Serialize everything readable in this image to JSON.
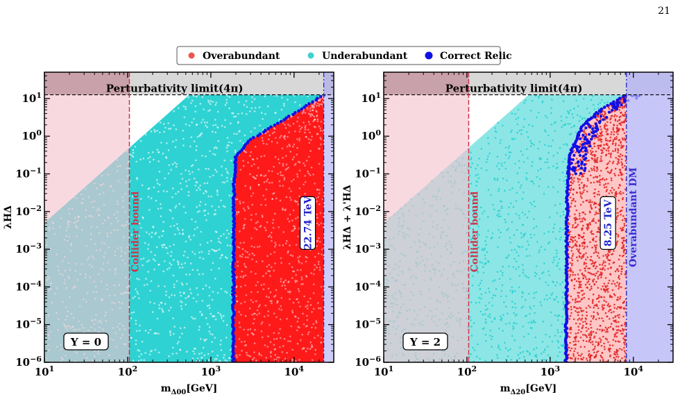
{
  "page_number": "21",
  "legend": {
    "items": [
      {
        "label": "Overabundant",
        "color": "#ef5350"
      },
      {
        "label": "Underabundant",
        "color": "#40d0d0"
      },
      {
        "label": "Correct Relic",
        "color": "#1010e6"
      }
    ]
  },
  "colors": {
    "overabundant": "#ff1a1a",
    "underabundant": "#2fd2d2",
    "correct_relic": "#1010e6",
    "pink_region": "#f5c2cd",
    "teal_overlap": "#3aa0a8",
    "perturbativity_band": "#d8d8d8",
    "overabundant_band_blue": "#b3b3f7",
    "collider_line": "#d0334a",
    "perturbativity_line": "#000000",
    "relic_limit_line": "#2020cc"
  },
  "chart_data": [
    {
      "type": "scatter",
      "xlabel": "m_{Δ_0^0} [GeV]",
      "ylabel": "λ_{HΔ}",
      "x_scale": "log",
      "y_scale": "log",
      "xlim": [
        10,
        30000
      ],
      "ylim": [
        1e-06,
        50
      ],
      "x_ticks": [
        "10^1",
        "10^2",
        "10^3",
        "10^4"
      ],
      "y_ticks": [
        "10^-6",
        "10^-5",
        "10^-4",
        "10^-3",
        "10^-2",
        "10^-1",
        "10^0",
        "10^1"
      ],
      "perturbativity_limit": 12.566,
      "perturbativity_label": "Perturbativity limit(4π)",
      "collider_bound_gev": 105,
      "collider_label": "Collider bound",
      "relic_limit_gev": 22740,
      "relic_limit_label": "22.74 TeV",
      "overabundant_band_label": "",
      "hypercharge_label": "Y = 0",
      "correct_relic_curve": [
        [
          1850,
          1e-06
        ],
        [
          1900,
          0.05
        ],
        [
          2000,
          0.3
        ],
        [
          3000,
          0.8
        ],
        [
          5000,
          1.6
        ],
        [
          10000,
          4
        ],
        [
          22740,
          12.566
        ]
      ],
      "unitarity_edge": [
        [
          10,
          0.005
        ],
        [
          100,
          0.3
        ],
        [
          550,
          12.566
        ]
      ],
      "grid": false,
      "legend_position": "top-center"
    },
    {
      "type": "scatter",
      "xlabel": "m_{Δ_2^0} [GeV]",
      "ylabel": "λ_{HΔ} + λ'_{HΔ}",
      "x_scale": "log",
      "y_scale": "log",
      "xlim": [
        10,
        30000
      ],
      "ylim": [
        1e-06,
        50
      ],
      "x_ticks": [
        "10^1",
        "10^2",
        "10^3",
        "10^4"
      ],
      "y_ticks": [
        "10^-6",
        "10^-5",
        "10^-4",
        "10^-3",
        "10^-2",
        "10^-1",
        "10^0",
        "10^1"
      ],
      "perturbativity_limit": 12.566,
      "perturbativity_label": "Perturbativity limit(4π)",
      "collider_bound_gev": 105,
      "collider_label": "Collider bound",
      "relic_limit_gev": 8250,
      "relic_limit_label": "8.25 TeV",
      "overabundant_band_label": "Overabundant DM",
      "hypercharge_label": "Y = 2",
      "correct_relic_curve": [
        [
          1550,
          1e-06
        ],
        [
          1600,
          0.02
        ],
        [
          1700,
          0.3
        ],
        [
          2500,
          2
        ],
        [
          4000,
          5
        ],
        [
          8250,
          12.566
        ]
      ],
      "unitarity_edge": [
        [
          10,
          0.005
        ],
        [
          100,
          0.3
        ],
        [
          550,
          12.566
        ]
      ],
      "grid": false,
      "legend_position": "top-center"
    }
  ]
}
